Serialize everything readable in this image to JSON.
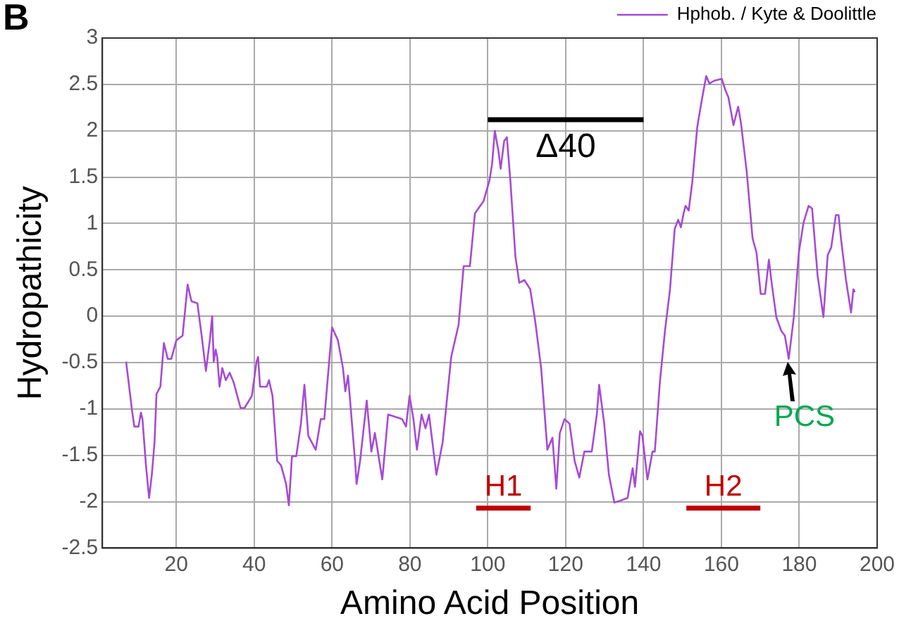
{
  "chart_data": {
    "type": "line",
    "xlabel": "Amino Acid Position",
    "ylabel": "Hydropathicity",
    "xlim": [
      1,
      200
    ],
    "xticks": [
      20,
      40,
      60,
      80,
      100,
      120,
      140,
      160,
      180,
      200
    ],
    "ylim": [
      -2.5,
      3
    ],
    "yticks": [
      -2.5,
      -2,
      -1.5,
      -1,
      -0.5,
      0,
      0.5,
      1,
      1.5,
      2,
      2.5,
      3
    ],
    "grid": true,
    "legend": "top right",
    "marker": "none",
    "line_style": "solid",
    "annotations": [
      "B",
      {
        "text": "PCS",
        "x": 177,
        "y": -0.45
      },
      {
        "text": "Δ40",
        "x": 120,
        "y": 2.12
      },
      {
        "text": "H1",
        "x": 104,
        "y": -2.07
      },
      {
        "text": "H2",
        "x": 160.5,
        "y": -2.07
      }
    ],
    "series": [
      {
        "color": "#000000",
        "x": [
          100,
          140
        ],
        "values": [
          2.12,
          2.12
        ]
      },
      {
        "color": "#c00000",
        "x": [
          97,
          111
        ],
        "values": [
          -2.07,
          -2.07
        ]
      },
      {
        "color": "#c00000",
        "x": [
          151,
          170
        ],
        "values": [
          -2.07,
          -2.07
        ]
      },
      {
        "name": "Hphob. / Kyte & Doolittle",
        "color": "#a64ad6",
        "x": [
          7.1,
          8.6,
          9.2,
          10.3,
          10.9,
          11.3,
          12.2,
          13,
          13.7,
          14.4,
          14.9,
          15.9,
          16.8,
          17.8,
          18.7,
          20,
          21.6,
          22.9,
          23.9,
          25.4,
          26.5,
          27.6,
          28.6,
          29.2,
          29.6,
          30.1,
          30.5,
          31.1,
          31.8,
          32.7,
          33.7,
          34.7,
          36.5,
          37.5,
          39.4,
          40.6,
          41,
          41.5,
          43.2,
          43.8,
          44.7,
          45.9,
          46.9,
          48.2,
          48.9,
          49.7,
          50.8,
          52,
          52.9,
          53.9,
          55.8,
          57.1,
          58,
          60,
          61.5,
          62.8,
          63.4,
          64.1,
          65.9,
          66.3,
          67.2,
          68.9,
          70.1,
          71,
          72.9,
          74.4,
          78,
          79,
          79.9,
          80.9,
          81.8,
          83,
          84,
          84.9,
          86.8,
          88.4,
          90.6,
          92.5,
          93.8,
          95.4,
          96.7,
          98.9,
          100.4,
          101.1,
          101.8,
          102.7,
          103.3,
          104.2,
          104.9,
          105.8,
          107.1,
          108.1,
          109.4,
          110.9,
          112.2,
          113.7,
          115.3,
          116.6,
          117.6,
          118.5,
          119.7,
          121,
          122.3,
          123.5,
          124.8,
          126.7,
          128,
          128.6,
          129.9,
          131.1,
          132.5,
          134,
          135.9,
          137.2,
          137.8,
          139.1,
          139.7,
          141,
          142.3,
          142.9,
          144.2,
          145.5,
          146.8,
          148,
          148.9,
          149.6,
          150.3,
          150.8,
          151.6,
          152.5,
          153.8,
          155,
          156.1,
          156.9,
          158.2,
          160.1,
          161,
          161.8,
          163.1,
          164.3,
          165,
          166.5,
          168,
          169,
          170.1,
          171.2,
          172.2,
          172.9,
          174.1,
          175.4,
          176.3,
          177.3,
          178.6,
          179.9,
          181.1,
          182.4,
          183.3,
          184.7,
          186.2,
          187.3,
          188.2,
          189.4,
          190.1,
          190.7,
          192,
          193.3,
          193.9,
          194.3
        ],
        "values": [
          -0.49,
          -1.01,
          -1.19,
          -1.19,
          -1.04,
          -1.11,
          -1.61,
          -1.96,
          -1.71,
          -1.36,
          -0.84,
          -0.76,
          -0.29,
          -0.46,
          -0.46,
          -0.26,
          -0.21,
          0.34,
          0.16,
          0.14,
          -0.21,
          -0.59,
          -0.26,
          0,
          -0.49,
          -0.36,
          -0.44,
          -0.76,
          -0.56,
          -0.69,
          -0.61,
          -0.71,
          -0.99,
          -0.99,
          -0.86,
          -0.49,
          -0.44,
          -0.76,
          -0.76,
          -0.69,
          -0.86,
          -1.56,
          -1.61,
          -1.81,
          -2.04,
          -1.51,
          -1.51,
          -1.16,
          -0.74,
          -1.29,
          -1.44,
          -1.11,
          -1.11,
          -0.12,
          -0.26,
          -0.56,
          -0.81,
          -0.64,
          -1.56,
          -1.81,
          -1.56,
          -0.91,
          -1.46,
          -1.26,
          -1.76,
          -1.06,
          -1.11,
          -1.19,
          -0.86,
          -1.11,
          -1.44,
          -1.06,
          -1.21,
          -1.06,
          -1.71,
          -1.36,
          -0.44,
          -0.09,
          0.54,
          0.54,
          1.11,
          1.24,
          1.46,
          1.64,
          2,
          1.79,
          1.59,
          1.89,
          1.93,
          1.46,
          0.64,
          0.36,
          0.39,
          0.29,
          -0.06,
          -0.56,
          -1.44,
          -1.31,
          -1.86,
          -1.26,
          -1.11,
          -1.16,
          -1.56,
          -1.74,
          -1.46,
          -1.46,
          -1.06,
          -0.74,
          -1.16,
          -1.71,
          -2.01,
          -1.99,
          -1.96,
          -1.64,
          -1.84,
          -1.24,
          -1.29,
          -1.76,
          -1.46,
          -1.46,
          -0.71,
          -0.16,
          0.29,
          0.94,
          1.04,
          0.96,
          1.11,
          1.19,
          1.14,
          1.44,
          2.04,
          2.34,
          2.59,
          2.51,
          2.54,
          2.56,
          2.44,
          2.36,
          2.06,
          2.26,
          2.09,
          1.56,
          0.84,
          0.69,
          0.24,
          0.24,
          0.61,
          0.36,
          -0.01,
          -0.16,
          -0.21,
          -0.46,
          -0.01,
          0.69,
          1.01,
          1.19,
          1.16,
          0.44,
          -0.01,
          0.66,
          0.74,
          1.09,
          1.09,
          0.84,
          0.39,
          0.04,
          0.29,
          0.26
        ]
      }
    ]
  }
}
